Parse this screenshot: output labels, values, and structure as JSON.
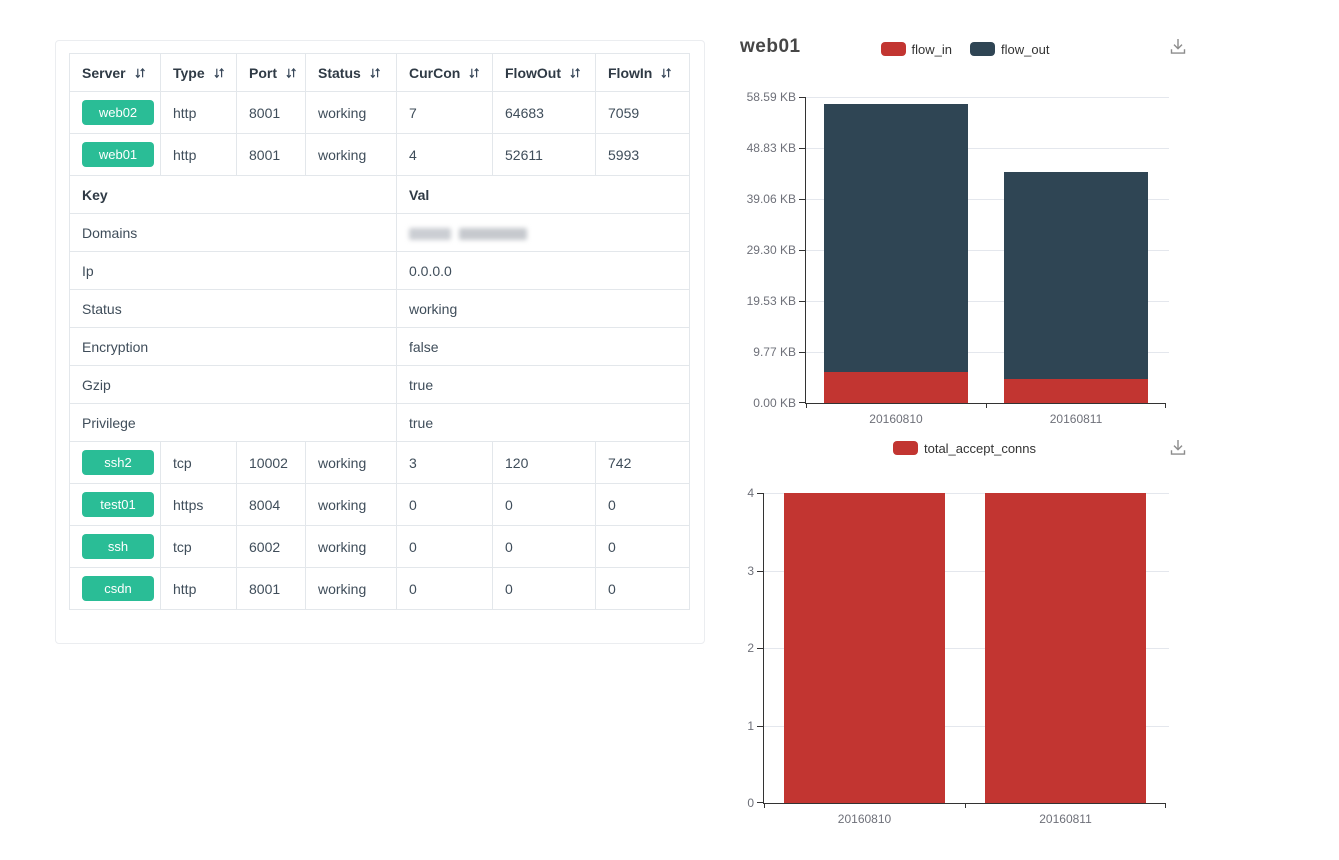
{
  "colors": {
    "server_badge_green": "#2abd96",
    "flow_in_red": "#c23531",
    "flow_out_dark": "#2f4554",
    "axis_label_gray": "#6e7079",
    "axis_line_dark": "#333333"
  },
  "table": {
    "columns": [
      {
        "label": "Server",
        "sortable": true
      },
      {
        "label": "Type",
        "sortable": true
      },
      {
        "label": "Port",
        "sortable": true
      },
      {
        "label": "Status",
        "sortable": true
      },
      {
        "label": "CurCon",
        "sortable": true
      },
      {
        "label": "FlowOut",
        "sortable": true
      },
      {
        "label": "FlowIn",
        "sortable": true
      }
    ],
    "server_rows_top": [
      {
        "server": "web02",
        "type": "http",
        "port": "8001",
        "status": "working",
        "curcon": "7",
        "flowout": "64683",
        "flowin": "7059"
      },
      {
        "server": "web01",
        "type": "http",
        "port": "8001",
        "status": "working",
        "curcon": "4",
        "flowout": "52611",
        "flowin": "5993"
      }
    ],
    "kv_header": {
      "key": "Key",
      "val": "Val"
    },
    "kv_rows": [
      {
        "key": "Domains",
        "val": "",
        "redacted": true
      },
      {
        "key": "Ip",
        "val": "0.0.0.0",
        "redacted": false
      },
      {
        "key": "Status",
        "val": "working",
        "redacted": false
      },
      {
        "key": "Encryption",
        "val": "false",
        "redacted": false
      },
      {
        "key": "Gzip",
        "val": "true",
        "redacted": false
      },
      {
        "key": "Privilege",
        "val": "true",
        "redacted": false
      }
    ],
    "server_rows_bottom": [
      {
        "server": "ssh2",
        "type": "tcp",
        "port": "10002",
        "status": "working",
        "curcon": "3",
        "flowout": "120",
        "flowin": "742"
      },
      {
        "server": "test01",
        "type": "https",
        "port": "8004",
        "status": "working",
        "curcon": "0",
        "flowout": "0",
        "flowin": "0"
      },
      {
        "server": "ssh",
        "type": "tcp",
        "port": "6002",
        "status": "working",
        "curcon": "0",
        "flowout": "0",
        "flowin": "0"
      },
      {
        "server": "csdn",
        "type": "http",
        "port": "8001",
        "status": "working",
        "curcon": "0",
        "flowout": "0",
        "flowin": "0"
      }
    ]
  },
  "charts_panel": {
    "title": "web01",
    "download_icon": "download-icon"
  },
  "chart_data": [
    {
      "type": "bar",
      "stacked": true,
      "title": "web01",
      "categories": [
        "20160810",
        "20160811"
      ],
      "series": [
        {
          "name": "flow_in",
          "color": "#c23531",
          "values": [
            5993,
            4745
          ]
        },
        {
          "name": "flow_out",
          "color": "#2f4554",
          "values": [
            52611,
            40608
          ]
        }
      ],
      "unit": "bytes",
      "ylim": [
        0,
        60000
      ],
      "y_tick_labels": [
        "0.00 KB",
        "9.77 KB",
        "19.53 KB",
        "29.30 KB",
        "39.06 KB",
        "48.83 KB",
        "58.59 KB"
      ],
      "xlabel": "",
      "ylabel": "",
      "grid": true,
      "legend_position": "top-center"
    },
    {
      "type": "bar",
      "stacked": false,
      "title": "",
      "categories": [
        "20160810",
        "20160811"
      ],
      "series": [
        {
          "name": "total_accept_conns",
          "color": "#c23531",
          "values": [
            4,
            4
          ]
        }
      ],
      "ylim": [
        0,
        4
      ],
      "y_tick_labels": [
        "0",
        "1",
        "2",
        "3",
        "4"
      ],
      "xlabel": "",
      "ylabel": "",
      "grid": true,
      "legend_position": "top-center"
    }
  ]
}
